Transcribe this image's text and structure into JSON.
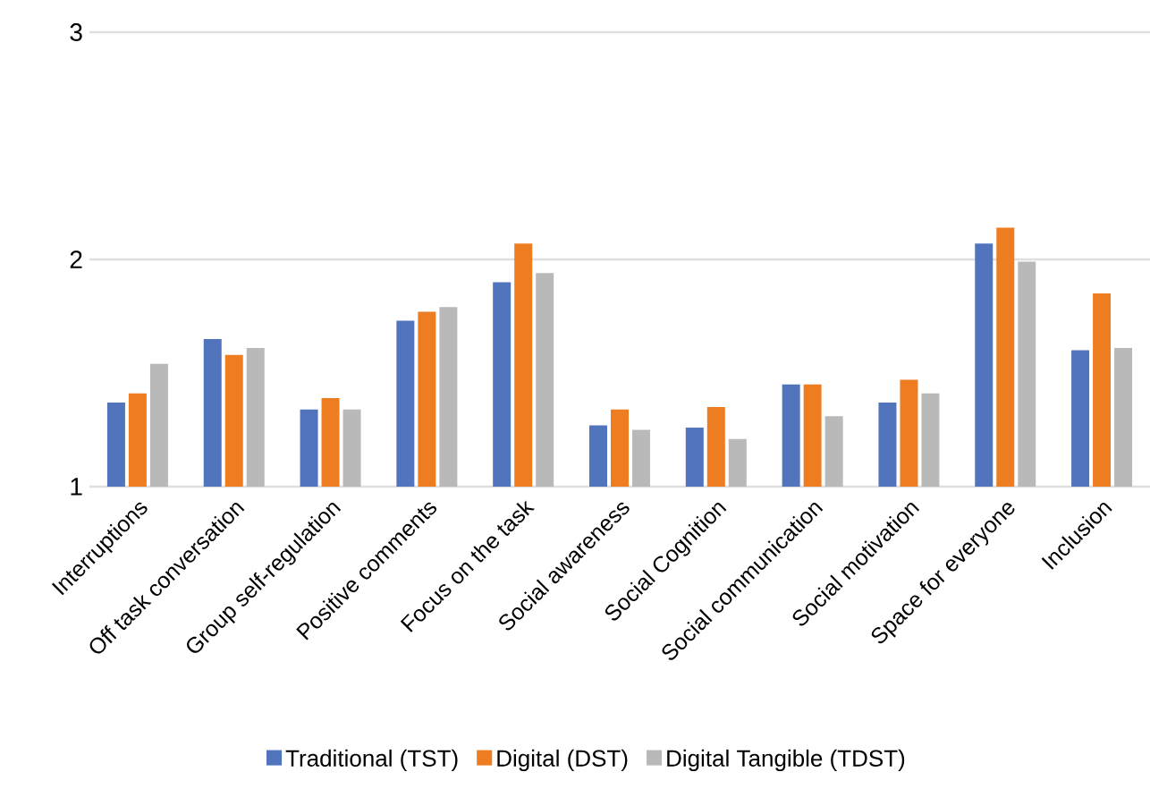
{
  "chart_data": {
    "type": "bar",
    "categories": [
      "Interruptions",
      "Off task conversation",
      "Group self-regulation",
      "Positive comments",
      "Focus on the task",
      "Social awareness",
      "Social Cognition",
      "Social communication",
      "Social motivation",
      "Space for everyone",
      "Inclusion"
    ],
    "series": [
      {
        "name": "Traditional (TST)",
        "color": "#5274bc",
        "values": [
          1.37,
          1.65,
          1.34,
          1.73,
          1.9,
          1.27,
          1.26,
          1.45,
          1.37,
          2.07,
          1.6
        ]
      },
      {
        "name": "Digital (DST)",
        "color": "#ee7d22",
        "values": [
          1.41,
          1.58,
          1.39,
          1.77,
          2.07,
          1.34,
          1.35,
          1.45,
          1.47,
          2.14,
          1.85
        ]
      },
      {
        "name": "Digital Tangible (TDST)",
        "color": "#b9b9b9",
        "values": [
          1.54,
          1.61,
          1.34,
          1.79,
          1.94,
          1.25,
          1.21,
          1.31,
          1.41,
          1.99,
          1.61
        ]
      }
    ],
    "ylim": [
      1,
      3
    ],
    "yticks": [
      1,
      2,
      3
    ],
    "grid": "y",
    "legend": "bottom"
  }
}
